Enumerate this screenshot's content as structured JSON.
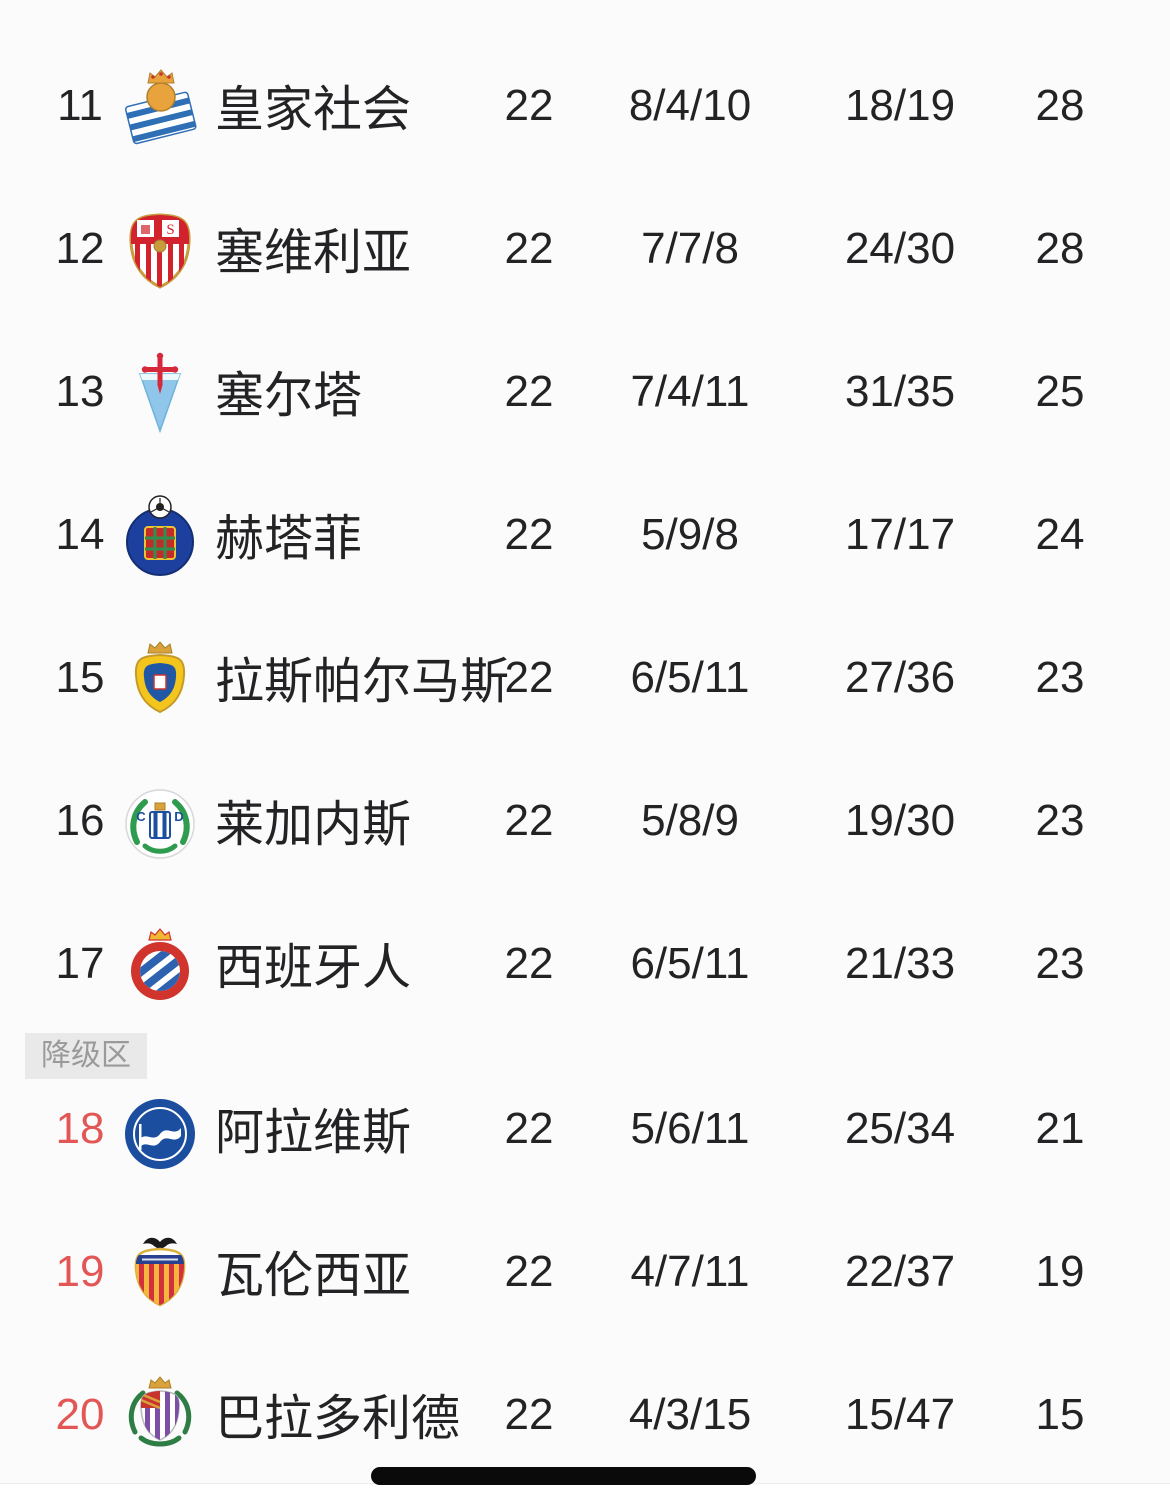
{
  "page": {
    "background": "#fbfbfb"
  },
  "table": {
    "relegation_label": "降级区",
    "relegation_band_before_pos": "18",
    "colors": {
      "text": "#232325",
      "relegation_pos": "#e25755",
      "band_bg": "#e9e9e9",
      "band_text": "#9a9a9a"
    },
    "rows": [
      {
        "pos": "11",
        "team": "皇家社会",
        "crest": "real-sociedad",
        "played": "22",
        "wdl": "8/4/10",
        "goals": "18/19",
        "points": "28",
        "relegation": false
      },
      {
        "pos": "12",
        "team": "塞维利亚",
        "crest": "sevilla",
        "played": "22",
        "wdl": "7/7/8",
        "goals": "24/30",
        "points": "28",
        "relegation": false
      },
      {
        "pos": "13",
        "team": "塞尔塔",
        "crest": "celta",
        "played": "22",
        "wdl": "7/4/11",
        "goals": "31/35",
        "points": "25",
        "relegation": false
      },
      {
        "pos": "14",
        "team": "赫塔菲",
        "crest": "getafe",
        "played": "22",
        "wdl": "5/9/8",
        "goals": "17/17",
        "points": "24",
        "relegation": false
      },
      {
        "pos": "15",
        "team": "拉斯帕尔马斯",
        "crest": "las-palmas",
        "played": "22",
        "wdl": "6/5/11",
        "goals": "27/36",
        "points": "23",
        "relegation": false
      },
      {
        "pos": "16",
        "team": "莱加内斯",
        "crest": "leganes",
        "played": "22",
        "wdl": "5/8/9",
        "goals": "19/30",
        "points": "23",
        "relegation": false
      },
      {
        "pos": "17",
        "team": "西班牙人",
        "crest": "espanyol",
        "played": "22",
        "wdl": "6/5/11",
        "goals": "21/33",
        "points": "23",
        "relegation": false
      },
      {
        "pos": "18",
        "team": "阿拉维斯",
        "crest": "alaves",
        "played": "22",
        "wdl": "5/6/11",
        "goals": "25/34",
        "points": "21",
        "relegation": true
      },
      {
        "pos": "19",
        "team": "瓦伦西亚",
        "crest": "valencia",
        "played": "22",
        "wdl": "4/7/11",
        "goals": "22/37",
        "points": "19",
        "relegation": true
      },
      {
        "pos": "20",
        "team": "巴拉多利德",
        "crest": "valladolid",
        "played": "22",
        "wdl": "4/3/15",
        "goals": "15/47",
        "points": "15",
        "relegation": true
      }
    ],
    "crest_palettes": {
      "real-sociedad": [
        "#2f6fb5",
        "#ffffff",
        "#e8a33d",
        "#c9342f"
      ],
      "sevilla": [
        "#d2222d",
        "#ffffff",
        "#c89b3c"
      ],
      "celta": [
        "#8fc6e9",
        "#d6273b",
        "#ffffff"
      ],
      "getafe": [
        "#1d3f9e",
        "#c32b2b",
        "#2f8f4e",
        "#f2c230"
      ],
      "las-palmas": [
        "#f3c51d",
        "#2158a5",
        "#d9a23a",
        "#ffffff"
      ],
      "leganes": [
        "#ffffff",
        "#2e9b4f",
        "#1c4fa0",
        "#d9a23a"
      ],
      "espanyol": [
        "#d0342c",
        "#ffffff",
        "#2e62b0",
        "#f2b632"
      ],
      "alaves": [
        "#1c4ea0",
        "#ffffff"
      ],
      "valencia": [
        "#f4b63f",
        "#d2303c",
        "#27408f",
        "#1a1a1a",
        "#ffffff"
      ],
      "valladolid": [
        "#7b4fa6",
        "#ffffff",
        "#2e7d45",
        "#d9a23a",
        "#c9342f"
      ]
    }
  },
  "home_indicator": {
    "color": "#0a0a0a"
  }
}
